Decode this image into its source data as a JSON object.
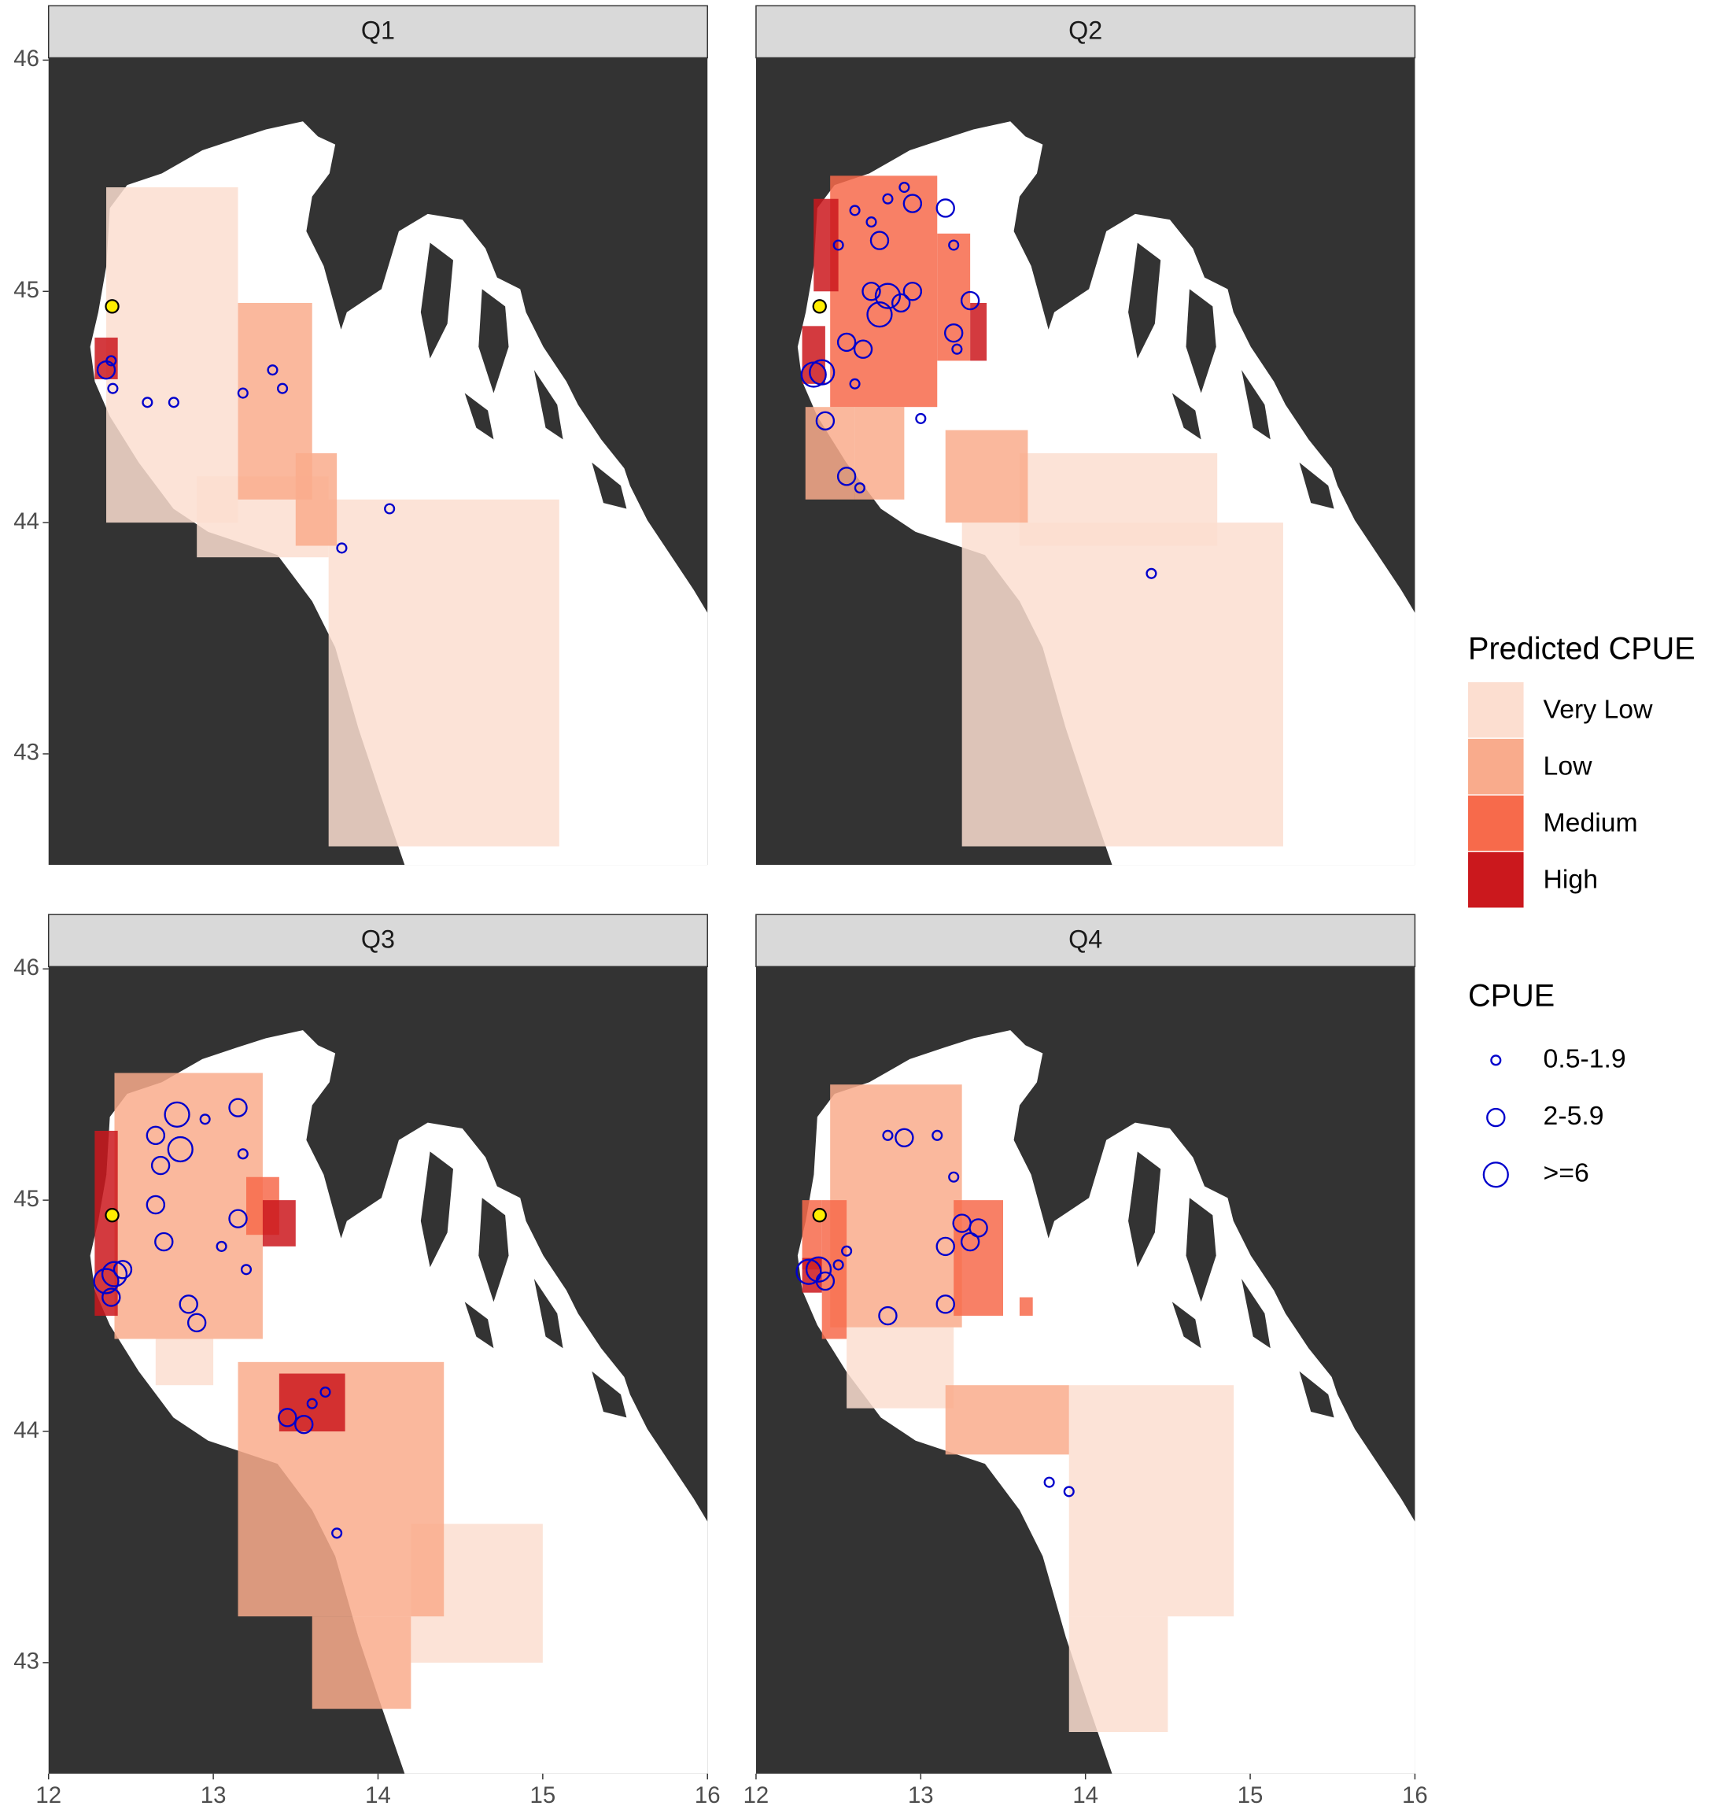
{
  "x_axis": {
    "lim": [
      12,
      16
    ],
    "ticks": [
      12,
      13,
      14,
      15,
      16
    ]
  },
  "y_axis": {
    "lim": [
      42.52,
      46.01
    ],
    "ticks": [
      43,
      44,
      45,
      46
    ]
  },
  "legend_fill": {
    "title": "Predicted CPUE",
    "levels": [
      {
        "label": "Very Low",
        "color": "#fcded0"
      },
      {
        "label": "Low",
        "color": "#f9ab8c"
      },
      {
        "label": "Medium",
        "color": "#f76a4b"
      },
      {
        "label": "High",
        "color": "#cb181d"
      }
    ]
  },
  "legend_size": {
    "title": "CPUE",
    "color": "#0000cc",
    "levels": [
      {
        "label": "0.5-1.9"
      },
      {
        "label": "2-5.9"
      },
      {
        "label": ">=6"
      }
    ]
  },
  "panels": [
    {
      "title": "Q1",
      "cells": [
        [
          12.35,
          44.0,
          13.15,
          45.45,
          0
        ],
        [
          13.7,
          42.6,
          15.1,
          44.1,
          0
        ],
        [
          12.9,
          43.85,
          13.7,
          44.2,
          0
        ],
        [
          13.15,
          44.1,
          13.6,
          44.95,
          1
        ],
        [
          13.5,
          43.9,
          13.75,
          44.3,
          1
        ],
        [
          12.28,
          44.62,
          12.42,
          44.8,
          3
        ]
      ],
      "points": [
        [
          12.35,
          44.66,
          1
        ],
        [
          12.38,
          44.7,
          0
        ],
        [
          12.39,
          44.58,
          0
        ],
        [
          12.6,
          44.52,
          0
        ],
        [
          12.76,
          44.52,
          0
        ],
        [
          13.18,
          44.56,
          0
        ],
        [
          13.36,
          44.66,
          0
        ],
        [
          13.42,
          44.58,
          0
        ],
        [
          14.07,
          44.06,
          0
        ],
        [
          13.78,
          43.89,
          0
        ]
      ]
    },
    {
      "title": "Q2",
      "cells": [
        [
          13.25,
          42.6,
          15.2,
          44.0,
          0
        ],
        [
          13.6,
          43.9,
          14.8,
          44.3,
          0
        ],
        [
          12.3,
          44.1,
          12.6,
          44.5,
          1
        ],
        [
          12.6,
          44.1,
          12.9,
          44.5,
          1
        ],
        [
          13.15,
          44.0,
          13.65,
          44.4,
          1
        ],
        [
          12.45,
          44.5,
          13.1,
          45.5,
          2
        ],
        [
          13.1,
          44.7,
          13.3,
          45.25,
          2
        ],
        [
          13.3,
          44.7,
          13.4,
          44.95,
          3
        ],
        [
          12.28,
          44.6,
          12.42,
          44.85,
          3
        ],
        [
          12.35,
          45.0,
          12.5,
          45.4,
          3
        ]
      ],
      "points": [
        [
          12.35,
          44.64,
          2
        ],
        [
          12.4,
          44.65,
          2
        ],
        [
          12.42,
          44.44,
          1
        ],
        [
          12.55,
          44.78,
          1
        ],
        [
          12.65,
          44.75,
          1
        ],
        [
          12.75,
          44.9,
          2
        ],
        [
          12.8,
          44.98,
          2
        ],
        [
          12.88,
          44.95,
          1
        ],
        [
          12.95,
          45.0,
          1
        ],
        [
          12.7,
          45.0,
          1
        ],
        [
          12.5,
          45.2,
          0
        ],
        [
          12.6,
          45.35,
          0
        ],
        [
          12.7,
          45.3,
          0
        ],
        [
          12.8,
          45.4,
          0
        ],
        [
          12.9,
          45.45,
          0
        ],
        [
          12.95,
          45.38,
          1
        ],
        [
          12.75,
          45.22,
          1
        ],
        [
          13.15,
          45.36,
          1
        ],
        [
          13.2,
          45.2,
          0
        ],
        [
          13.3,
          44.96,
          1
        ],
        [
          13.2,
          44.82,
          1
        ],
        [
          13.22,
          44.75,
          0
        ],
        [
          12.55,
          44.2,
          1
        ],
        [
          12.63,
          44.15,
          0
        ],
        [
          13.0,
          44.45,
          0
        ],
        [
          12.6,
          44.6,
          0
        ],
        [
          14.4,
          43.78,
          0
        ]
      ]
    },
    {
      "title": "Q3",
      "cells": [
        [
          12.65,
          44.2,
          13.0,
          44.4,
          0
        ],
        [
          14.2,
          43.0,
          15.0,
          43.6,
          0
        ],
        [
          12.4,
          44.4,
          13.3,
          45.55,
          1
        ],
        [
          13.15,
          43.2,
          14.4,
          44.3,
          1
        ],
        [
          13.6,
          42.8,
          14.2,
          43.2,
          1
        ],
        [
          13.2,
          44.85,
          13.4,
          45.1,
          2
        ],
        [
          12.28,
          44.5,
          12.42,
          45.3,
          3
        ],
        [
          13.3,
          44.8,
          13.5,
          45.0,
          3
        ],
        [
          13.4,
          44.0,
          13.8,
          44.25,
          3
        ]
      ],
      "points": [
        [
          12.35,
          44.65,
          2
        ],
        [
          12.4,
          44.68,
          2
        ],
        [
          12.38,
          44.58,
          1
        ],
        [
          12.45,
          44.7,
          1
        ],
        [
          12.65,
          45.28,
          1
        ],
        [
          12.68,
          45.15,
          1
        ],
        [
          12.8,
          45.22,
          2
        ],
        [
          12.78,
          45.37,
          2
        ],
        [
          12.95,
          45.35,
          0
        ],
        [
          13.15,
          45.4,
          1
        ],
        [
          13.18,
          45.2,
          0
        ],
        [
          12.65,
          44.98,
          1
        ],
        [
          12.7,
          44.82,
          1
        ],
        [
          12.85,
          44.55,
          1
        ],
        [
          12.9,
          44.47,
          1
        ],
        [
          13.15,
          44.92,
          1
        ],
        [
          13.05,
          44.8,
          0
        ],
        [
          13.2,
          44.7,
          0
        ],
        [
          13.45,
          44.06,
          1
        ],
        [
          13.6,
          44.12,
          0
        ],
        [
          13.55,
          44.03,
          1
        ],
        [
          13.68,
          44.17,
          0
        ],
        [
          13.75,
          43.56,
          0
        ]
      ]
    },
    {
      "title": "Q4",
      "cells": [
        [
          12.55,
          44.1,
          13.2,
          44.45,
          0
        ],
        [
          13.9,
          43.2,
          14.9,
          44.2,
          0
        ],
        [
          13.9,
          42.7,
          14.5,
          43.2,
          0
        ],
        [
          12.45,
          44.45,
          13.25,
          45.5,
          1
        ],
        [
          13.15,
          43.9,
          13.9,
          44.2,
          1
        ],
        [
          12.28,
          44.7,
          12.4,
          45.0,
          2
        ],
        [
          13.2,
          44.5,
          13.5,
          45.0,
          2
        ],
        [
          12.4,
          44.4,
          12.55,
          45.0,
          2
        ],
        [
          13.6,
          44.5,
          13.68,
          44.58,
          2
        ],
        [
          12.28,
          44.6,
          12.4,
          44.75,
          3
        ]
      ],
      "points": [
        [
          12.32,
          44.69,
          2
        ],
        [
          12.38,
          44.7,
          2
        ],
        [
          12.42,
          44.65,
          1
        ],
        [
          12.5,
          44.72,
          0
        ],
        [
          12.55,
          44.78,
          0
        ],
        [
          12.8,
          44.5,
          1
        ],
        [
          12.8,
          45.28,
          0
        ],
        [
          12.9,
          45.27,
          1
        ],
        [
          13.1,
          45.28,
          0
        ],
        [
          13.2,
          45.1,
          0
        ],
        [
          13.25,
          44.9,
          1
        ],
        [
          13.3,
          44.82,
          1
        ],
        [
          13.35,
          44.88,
          1
        ],
        [
          13.15,
          44.8,
          1
        ],
        [
          13.15,
          44.55,
          1
        ],
        [
          13.78,
          43.78,
          0
        ],
        [
          13.9,
          43.74,
          0
        ]
      ]
    }
  ]
}
